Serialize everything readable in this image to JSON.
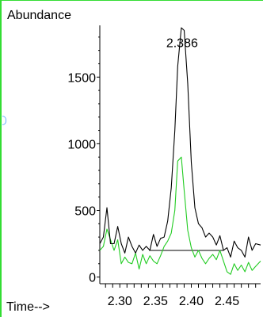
{
  "chart_data": {
    "type": "line",
    "ylabel": "Abundance",
    "xlabel": "Time-->",
    "xlim": [
      2.272,
      2.497
    ],
    "ylim": [
      -50,
      1900
    ],
    "x_ticks": [
      "2.30",
      "2.35",
      "2.40",
      "2.45"
    ],
    "y_ticks": [
      "0",
      "500",
      "1000",
      "1500"
    ],
    "annotations": [
      {
        "text": "2.386",
        "x": 2.386,
        "y": 1760
      }
    ],
    "baseline": {
      "x": [
        2.341,
        2.445
      ],
      "y": [
        200,
        200
      ]
    },
    "colors": {
      "series1": "#000000",
      "series2": "#22cc22",
      "axis": "#000000",
      "frame": "#33dd33"
    },
    "series": [
      {
        "values": [
          [
            2.272,
            250
          ],
          [
            2.277,
            300
          ],
          [
            2.282,
            520
          ],
          [
            2.287,
            250
          ],
          [
            2.292,
            250
          ],
          [
            2.297,
            380
          ],
          [
            2.302,
            250
          ],
          [
            2.307,
            180
          ],
          [
            2.312,
            300
          ],
          [
            2.317,
            230
          ],
          [
            2.322,
            180
          ],
          [
            2.327,
            240
          ],
          [
            2.332,
            200
          ],
          [
            2.337,
            230
          ],
          [
            2.342,
            200
          ],
          [
            2.347,
            320
          ],
          [
            2.352,
            230
          ],
          [
            2.357,
            290
          ],
          [
            2.362,
            300
          ],
          [
            2.367,
            420
          ],
          [
            2.372,
            670
          ],
          [
            2.377,
            1100
          ],
          [
            2.381,
            1580
          ],
          [
            2.386,
            1870
          ],
          [
            2.39,
            1850
          ],
          [
            2.395,
            1450
          ],
          [
            2.4,
            860
          ],
          [
            2.405,
            520
          ],
          [
            2.41,
            400
          ],
          [
            2.415,
            370
          ],
          [
            2.42,
            300
          ],
          [
            2.425,
            330
          ],
          [
            2.43,
            300
          ],
          [
            2.435,
            240
          ],
          [
            2.44,
            310
          ],
          [
            2.445,
            200
          ],
          [
            2.45,
            220
          ],
          [
            2.455,
            150
          ],
          [
            2.46,
            270
          ],
          [
            2.465,
            220
          ],
          [
            2.47,
            200
          ],
          [
            2.475,
            150
          ],
          [
            2.48,
            300
          ],
          [
            2.485,
            200
          ],
          [
            2.49,
            250
          ],
          [
            2.497,
            240
          ]
        ]
      },
      {
        "values": [
          [
            2.272,
            200
          ],
          [
            2.277,
            230
          ],
          [
            2.282,
            360
          ],
          [
            2.287,
            280
          ],
          [
            2.292,
            200
          ],
          [
            2.297,
            280
          ],
          [
            2.302,
            100
          ],
          [
            2.307,
            150
          ],
          [
            2.312,
            110
          ],
          [
            2.317,
            100
          ],
          [
            2.322,
            180
          ],
          [
            2.327,
            60
          ],
          [
            2.332,
            170
          ],
          [
            2.337,
            100
          ],
          [
            2.342,
            160
          ],
          [
            2.347,
            120
          ],
          [
            2.352,
            100
          ],
          [
            2.357,
            160
          ],
          [
            2.362,
            230
          ],
          [
            2.367,
            270
          ],
          [
            2.372,
            330
          ],
          [
            2.377,
            500
          ],
          [
            2.381,
            870
          ],
          [
            2.386,
            900
          ],
          [
            2.39,
            650
          ],
          [
            2.395,
            350
          ],
          [
            2.4,
            220
          ],
          [
            2.405,
            150
          ],
          [
            2.41,
            200
          ],
          [
            2.415,
            140
          ],
          [
            2.42,
            100
          ],
          [
            2.425,
            140
          ],
          [
            2.43,
            170
          ],
          [
            2.435,
            130
          ],
          [
            2.44,
            200
          ],
          [
            2.445,
            120
          ],
          [
            2.45,
            40
          ],
          [
            2.455,
            20
          ],
          [
            2.46,
            100
          ],
          [
            2.465,
            50
          ],
          [
            2.47,
            90
          ],
          [
            2.475,
            40
          ],
          [
            2.48,
            110
          ],
          [
            2.485,
            50
          ],
          [
            2.49,
            80
          ],
          [
            2.497,
            120
          ]
        ]
      }
    ]
  }
}
